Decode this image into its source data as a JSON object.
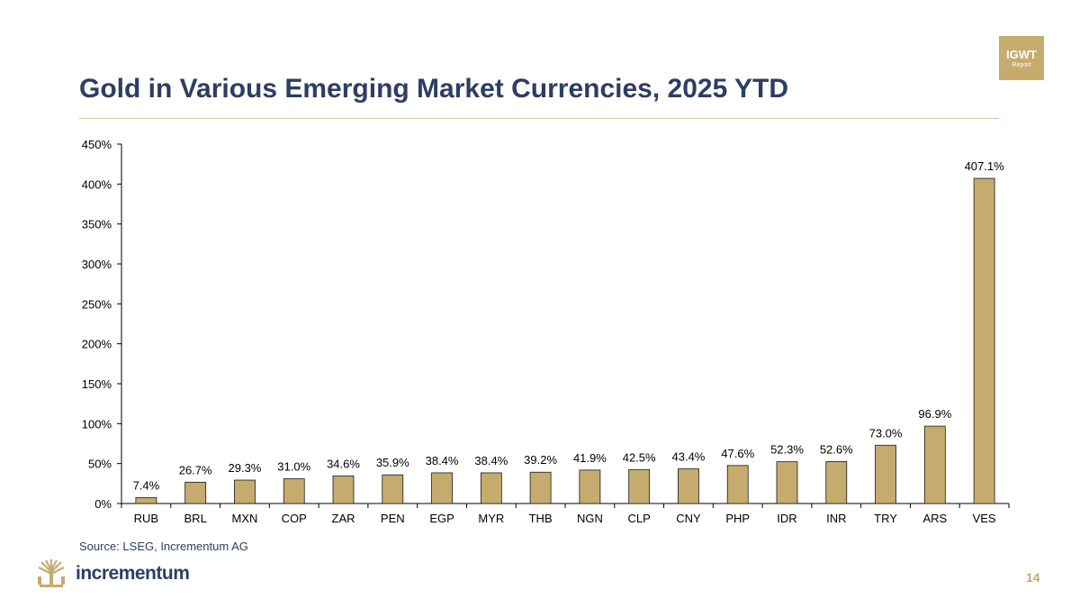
{
  "badge": {
    "line1": "IGWT",
    "line2": "Report"
  },
  "source": "Source: LSEG, Incrementum AG",
  "brand": {
    "name": "incrementum"
  },
  "page_number": "14",
  "colors": {
    "bar": "#c5ab6e",
    "bar_stroke": "#1a1a1a",
    "title": "#2e3d63",
    "accent": "#c5ab6e"
  },
  "chart_data": {
    "type": "bar",
    "title": "Gold in Various Emerging Market Currencies, 2025 YTD",
    "categories": [
      "RUB",
      "BRL",
      "MXN",
      "COP",
      "ZAR",
      "PEN",
      "EGP",
      "MYR",
      "THB",
      "NGN",
      "CLP",
      "CNY",
      "PHP",
      "IDR",
      "INR",
      "TRY",
      "ARS",
      "VES"
    ],
    "values": [
      7.4,
      26.7,
      29.3,
      31.0,
      34.6,
      35.9,
      38.4,
      38.4,
      39.2,
      41.9,
      42.5,
      43.4,
      47.6,
      52.3,
      52.6,
      73.0,
      96.9,
      407.1
    ],
    "data_labels": [
      "7.4%",
      "26.7%",
      "29.3%",
      "31.0%",
      "34.6%",
      "35.9%",
      "38.4%",
      "38.4%",
      "39.2%",
      "41.9%",
      "42.5%",
      "43.4%",
      "47.6%",
      "52.3%",
      "52.6%",
      "73.0%",
      "96.9%",
      "407.1%"
    ],
    "xlabel": "",
    "ylabel": "",
    "ylim": [
      0,
      450
    ],
    "yticks": [
      0,
      50,
      100,
      150,
      200,
      250,
      300,
      350,
      400,
      450
    ],
    "ytick_labels": [
      "0%",
      "50%",
      "100%",
      "150%",
      "200%",
      "250%",
      "300%",
      "350%",
      "400%",
      "450%"
    ],
    "grid": false,
    "legend": "none"
  }
}
